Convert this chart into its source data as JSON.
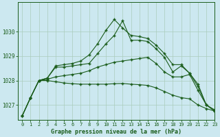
{
  "title": "Graphe pression niveau de la mer (hPa)",
  "background_color": "#cce8f0",
  "grid_color": "#aaccbb",
  "line_color": "#1a5c1a",
  "xlim": [
    -0.5,
    23
  ],
  "ylim": [
    1026.4,
    1031.2
  ],
  "yticks": [
    1027,
    1028,
    1029,
    1030
  ],
  "xticks": [
    0,
    1,
    2,
    3,
    4,
    5,
    6,
    7,
    8,
    9,
    10,
    11,
    12,
    13,
    14,
    15,
    16,
    17,
    18,
    19,
    20,
    21,
    22,
    23
  ],
  "series": [
    [
      1026.55,
      1027.3,
      1028.0,
      1028.1,
      1028.6,
      1028.65,
      1028.7,
      1028.8,
      1029.05,
      1029.5,
      1030.05,
      1030.5,
      1030.15,
      1029.85,
      1029.8,
      1029.72,
      1029.45,
      1029.1,
      1028.65,
      1028.65,
      1028.3,
      1027.85,
      1027.0,
      1026.8
    ],
    [
      1026.55,
      1027.3,
      1028.0,
      1028.1,
      1028.55,
      1028.55,
      1028.6,
      1028.65,
      1028.7,
      1029.1,
      1029.5,
      1029.85,
      1030.45,
      1029.65,
      1029.65,
      1029.6,
      1029.3,
      1028.95,
      1028.35,
      1028.6,
      1028.3,
      1027.75,
      1027.0,
      1026.75
    ],
    [
      1026.55,
      1027.3,
      1028.0,
      1028.05,
      1028.15,
      1028.2,
      1028.25,
      1028.3,
      1028.4,
      1028.55,
      1028.65,
      1028.75,
      1028.8,
      1028.85,
      1028.9,
      1028.95,
      1028.7,
      1028.35,
      1028.15,
      1028.15,
      1028.25,
      1027.6,
      1027.0,
      1026.75
    ],
    [
      1026.55,
      1027.3,
      1028.0,
      1028.0,
      1027.95,
      1027.9,
      1027.87,
      1027.85,
      1027.85,
      1027.85,
      1027.85,
      1027.87,
      1027.88,
      1027.85,
      1027.83,
      1027.8,
      1027.7,
      1027.55,
      1027.4,
      1027.3,
      1027.25,
      1027.0,
      1026.85,
      1026.75
    ]
  ]
}
